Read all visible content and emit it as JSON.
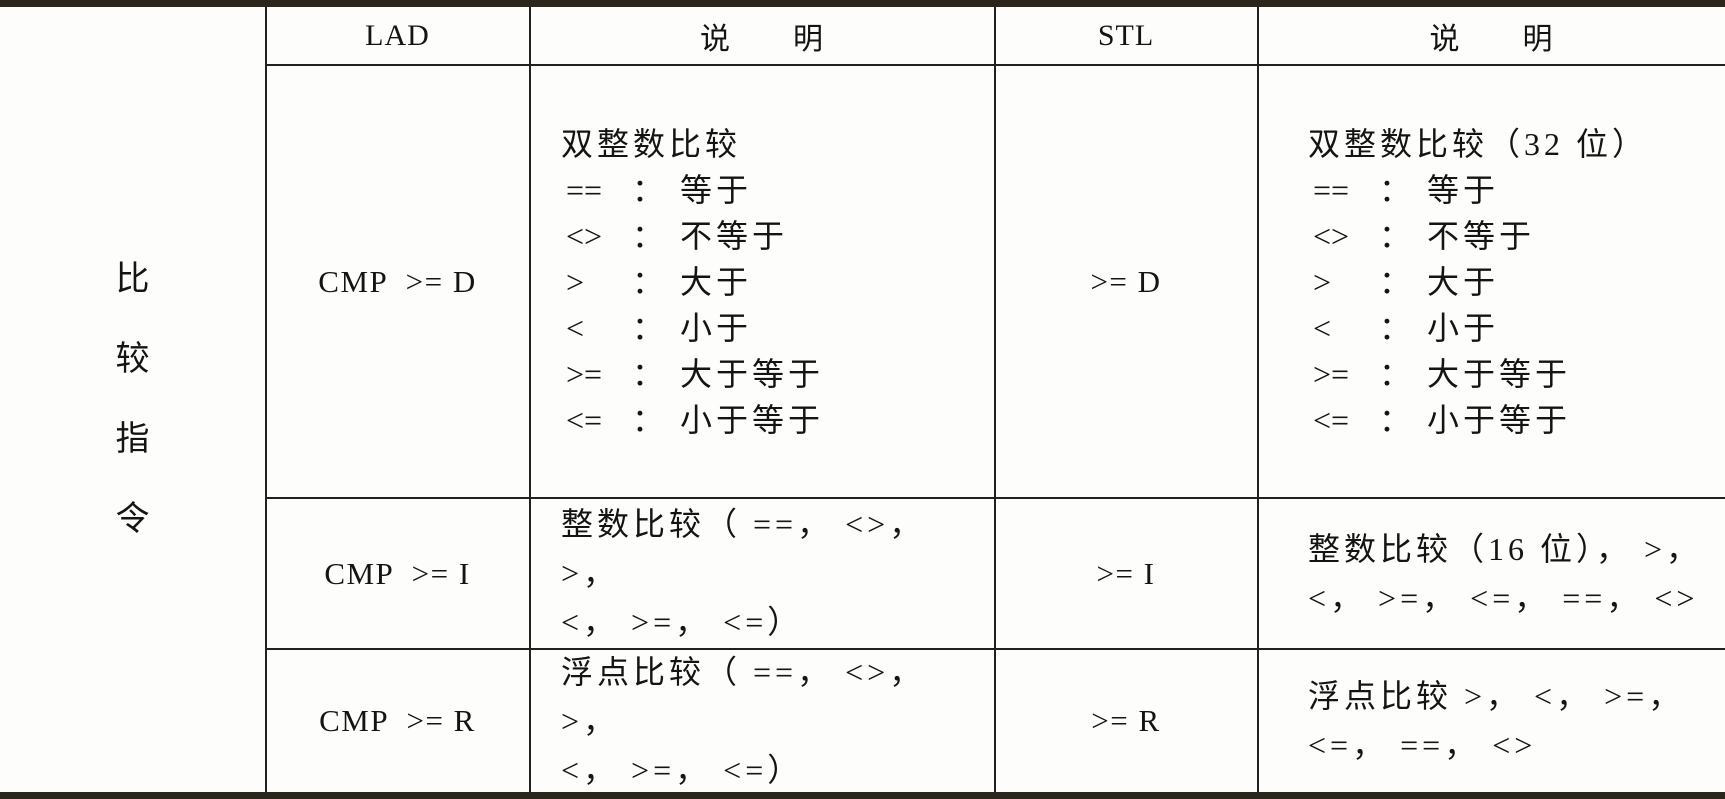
{
  "table": {
    "group_label": {
      "text": "比较指令",
      "chars": [
        "比",
        "较",
        "指",
        "令"
      ]
    },
    "header": {
      "lad": "LAD",
      "lad_desc": "说　　明",
      "stl": "STL",
      "stl_desc": "说　　明"
    },
    "colon": "：",
    "rows": [
      {
        "lad": "CMP  >= D",
        "stl": ">= D",
        "lad_desc": {
          "title": "双整数比较",
          "ops": [
            {
              "op": "==",
              "term": "等于"
            },
            {
              "op": "<>",
              "term": "不等于"
            },
            {
              "op": ">",
              "term": "大于"
            },
            {
              "op": "<",
              "term": "小于"
            },
            {
              "op": ">=",
              "term": "大于等于"
            },
            {
              "op": "<=",
              "term": "小于等于"
            }
          ]
        },
        "stl_desc": {
          "title": "双整数比较（32 位）",
          "ops": [
            {
              "op": "==",
              "term": "等于"
            },
            {
              "op": "<>",
              "term": "不等于"
            },
            {
              "op": ">",
              "term": "大于"
            },
            {
              "op": "<",
              "term": "小于"
            },
            {
              "op": ">=",
              "term": "大于等于"
            },
            {
              "op": "<=",
              "term": "小于等于"
            }
          ]
        }
      },
      {
        "lad": "CMP  >= I",
        "stl": ">= I",
        "lad_desc_lines": [
          "整数比较（ ==， <>， >，",
          "<， >=， <=）"
        ],
        "stl_desc_lines": [
          "整数比较（16 位）， >，",
          "<， >=， <=， ==， <>"
        ]
      },
      {
        "lad": "CMP  >= R",
        "stl": ">= R",
        "lad_desc_lines": [
          "浮点比较（ ==， <>， >，",
          "<， >=， <=）"
        ],
        "stl_desc_lines": [
          "浮点比较 >， <， >=，",
          "<=， ==， <>"
        ]
      }
    ]
  },
  "colors": {
    "frame": "#2b261b",
    "grid": "#212121",
    "text": "#141414",
    "background": "#fdfdfb"
  }
}
